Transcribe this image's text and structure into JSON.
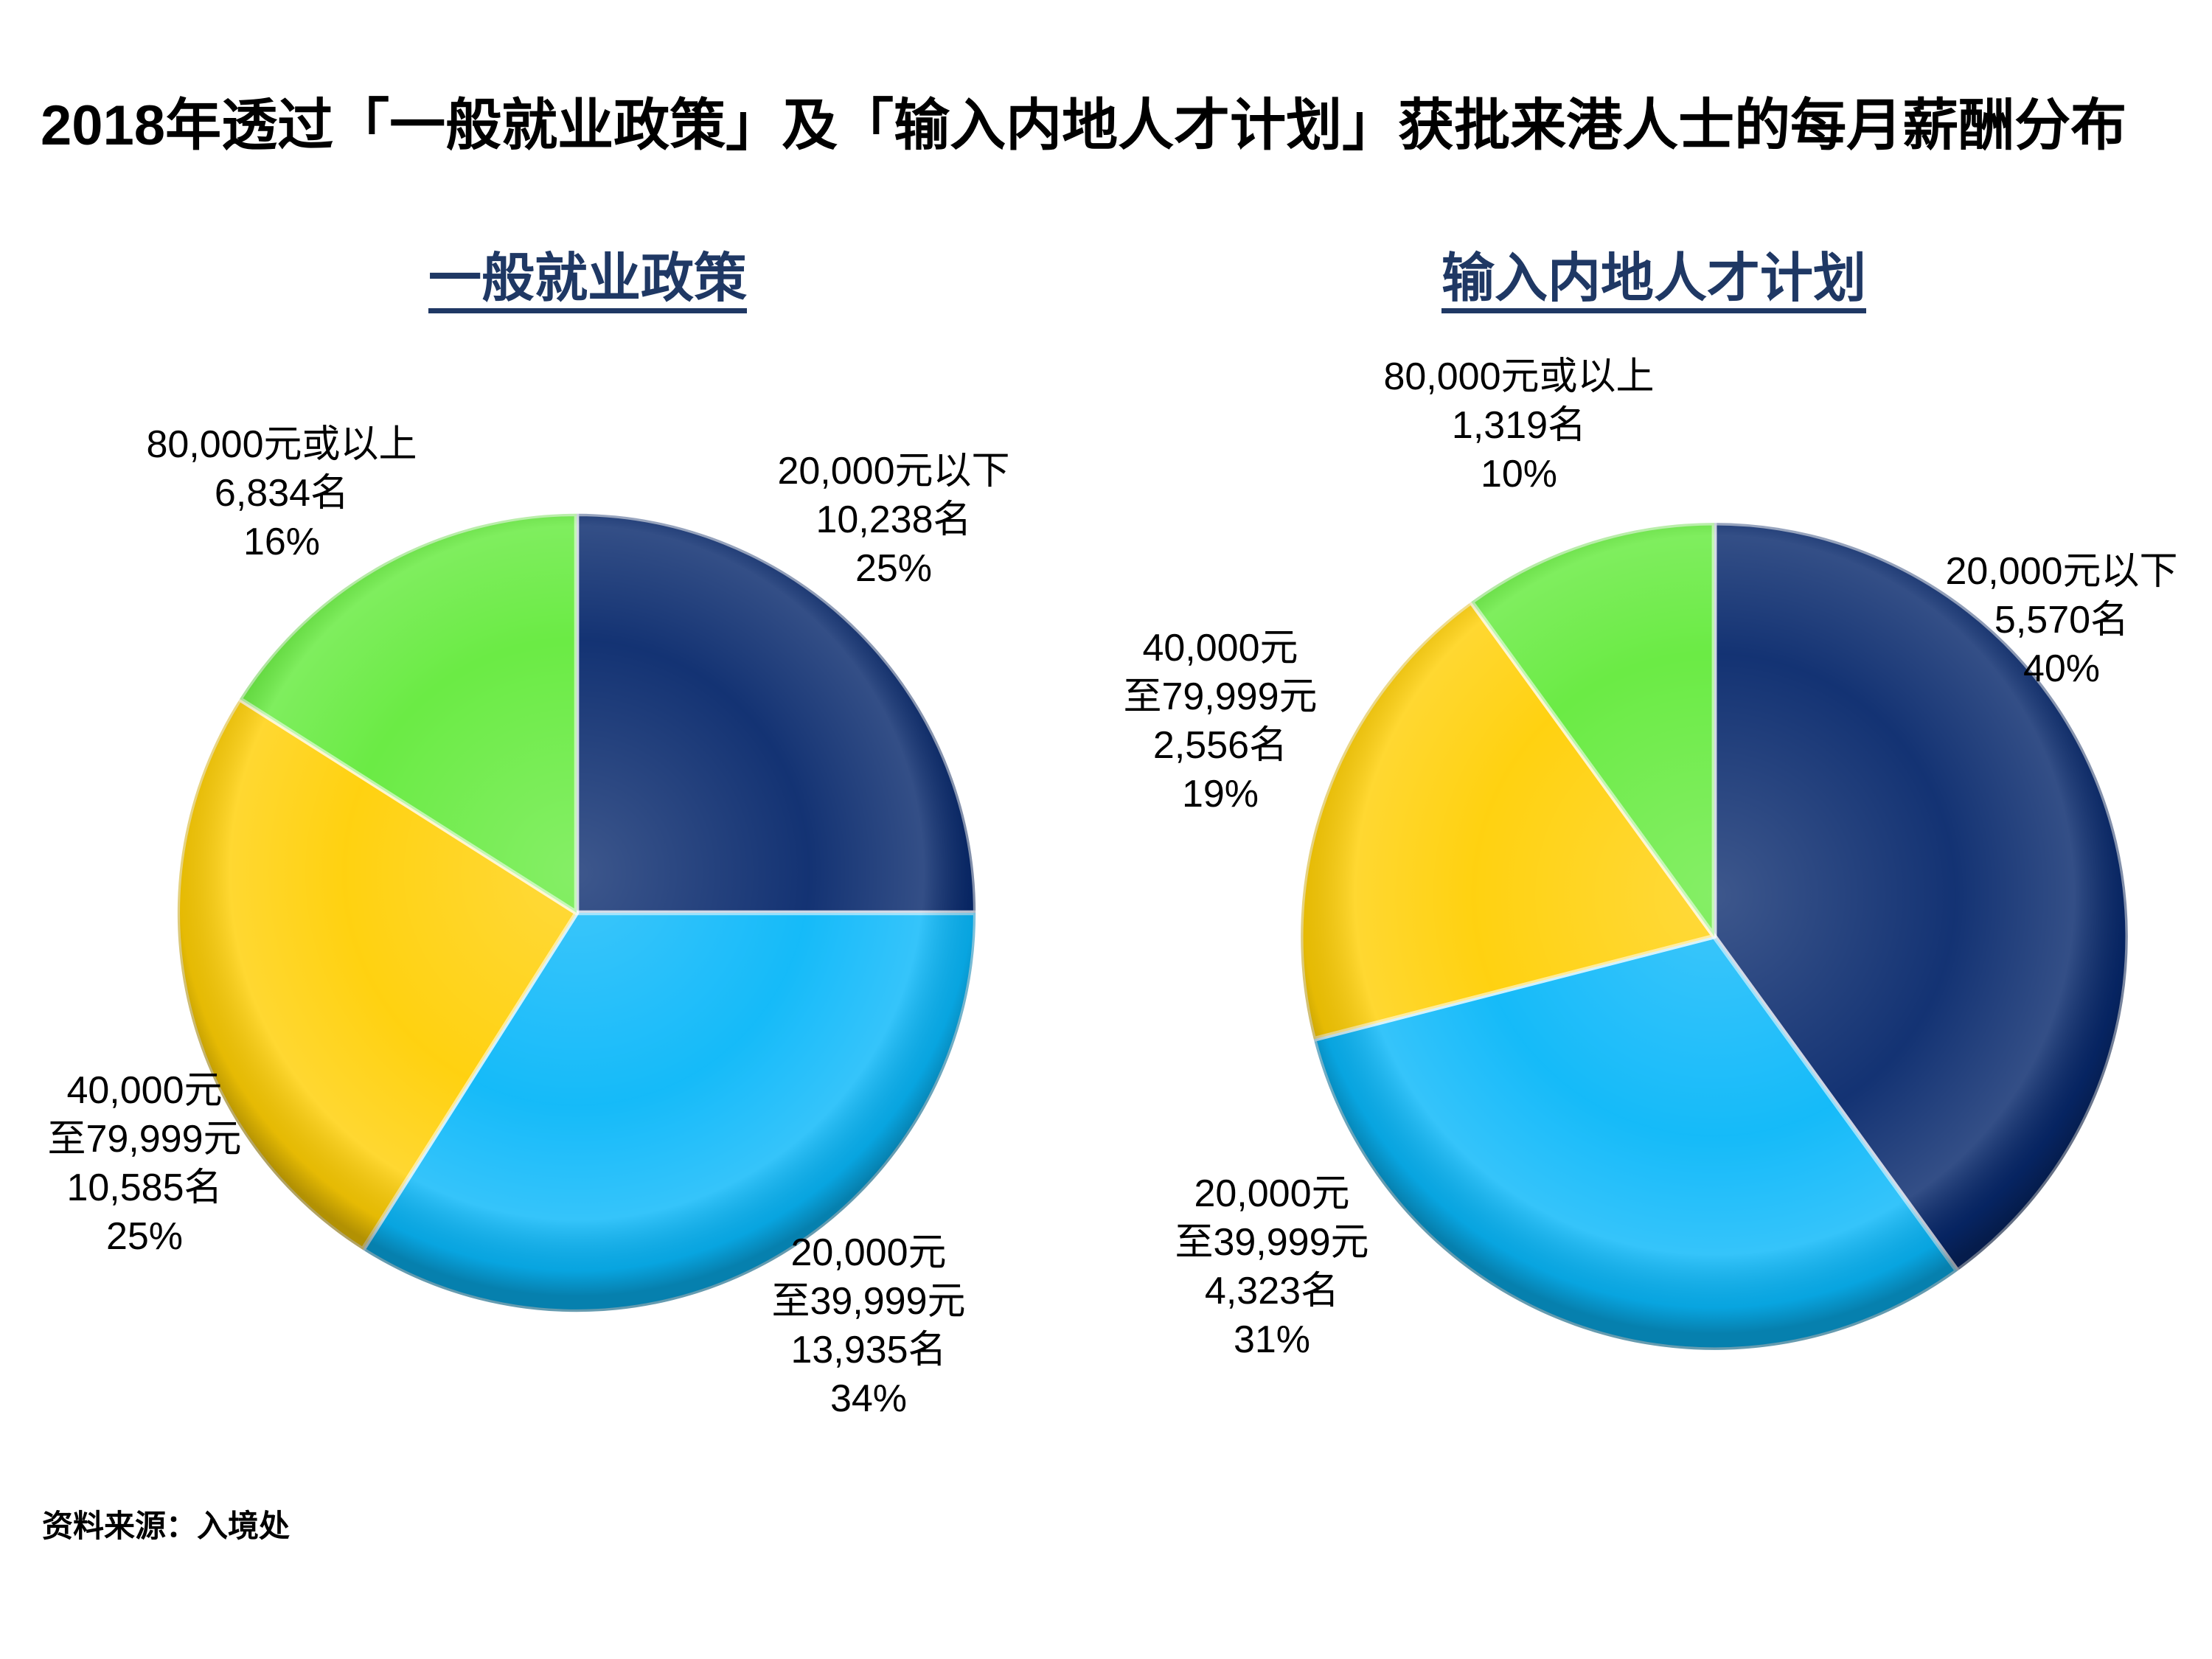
{
  "page": {
    "title": "2018年透过「一般就业政策」及「输入内地人才计划」获批来港人士的每月薪酬分布",
    "source": "资料来源：入境处"
  },
  "colors": {
    "navy": "#07286C",
    "cyan": "#09B7F9",
    "yellow": "#FFCF04",
    "green": "#63EA3B",
    "title_navy": "#1F3864"
  },
  "charts": {
    "left": {
      "title": "一般就业政策",
      "labels": {
        "top_left": {
          "lines": [
            "80,000元或以上",
            "6,834名",
            "16%"
          ]
        },
        "top_right": {
          "lines": [
            "20,000元以下",
            "10,238名",
            "25%"
          ]
        },
        "bottom_left": {
          "lines": [
            "40,000元",
            "至79,999元",
            "10,585名",
            "25%"
          ]
        },
        "bottom_right": {
          "lines": [
            "20,000元",
            "至39,999元",
            "13,935名",
            "34%"
          ]
        }
      }
    },
    "right": {
      "title": "输入内地人才计划",
      "labels": {
        "top": {
          "lines": [
            "80,000元或以上",
            "1,319名",
            "10%"
          ]
        },
        "left": {
          "lines": [
            "40,000元",
            "至79,999元",
            "2,556名",
            "19%"
          ]
        },
        "right": {
          "lines": [
            "20,000元以下",
            "5,570名",
            "40%"
          ]
        },
        "bottom": {
          "lines": [
            "20,000元",
            "至39,999元",
            "4,323名",
            "31%"
          ]
        }
      }
    }
  },
  "chart_data": [
    {
      "type": "pie",
      "title": "一般就业政策",
      "categories": [
        "20,000元以下",
        "20,000元至39,999元",
        "40,000元至79,999元",
        "80,000元或以上"
      ],
      "values": [
        10238,
        13935,
        10585,
        6834
      ],
      "percents": [
        25,
        34,
        25,
        16
      ],
      "unit": "名",
      "colors": [
        "#07286C",
        "#09B7F9",
        "#FFCF04",
        "#63EA3B"
      ],
      "start_angle_deg": 0,
      "direction": "clockwise",
      "legend_position": "outside-labels"
    },
    {
      "type": "pie",
      "title": "输入内地人才计划",
      "categories": [
        "20,000元以下",
        "20,000元至39,999元",
        "40,000元至79,999元",
        "80,000元或以上"
      ],
      "values": [
        5570,
        4323,
        2556,
        1319
      ],
      "percents": [
        40,
        31,
        19,
        10
      ],
      "unit": "名",
      "colors": [
        "#07286C",
        "#09B7F9",
        "#FFCF04",
        "#63EA3B"
      ],
      "start_angle_deg": 0,
      "direction": "clockwise",
      "legend_position": "outside-labels"
    }
  ]
}
